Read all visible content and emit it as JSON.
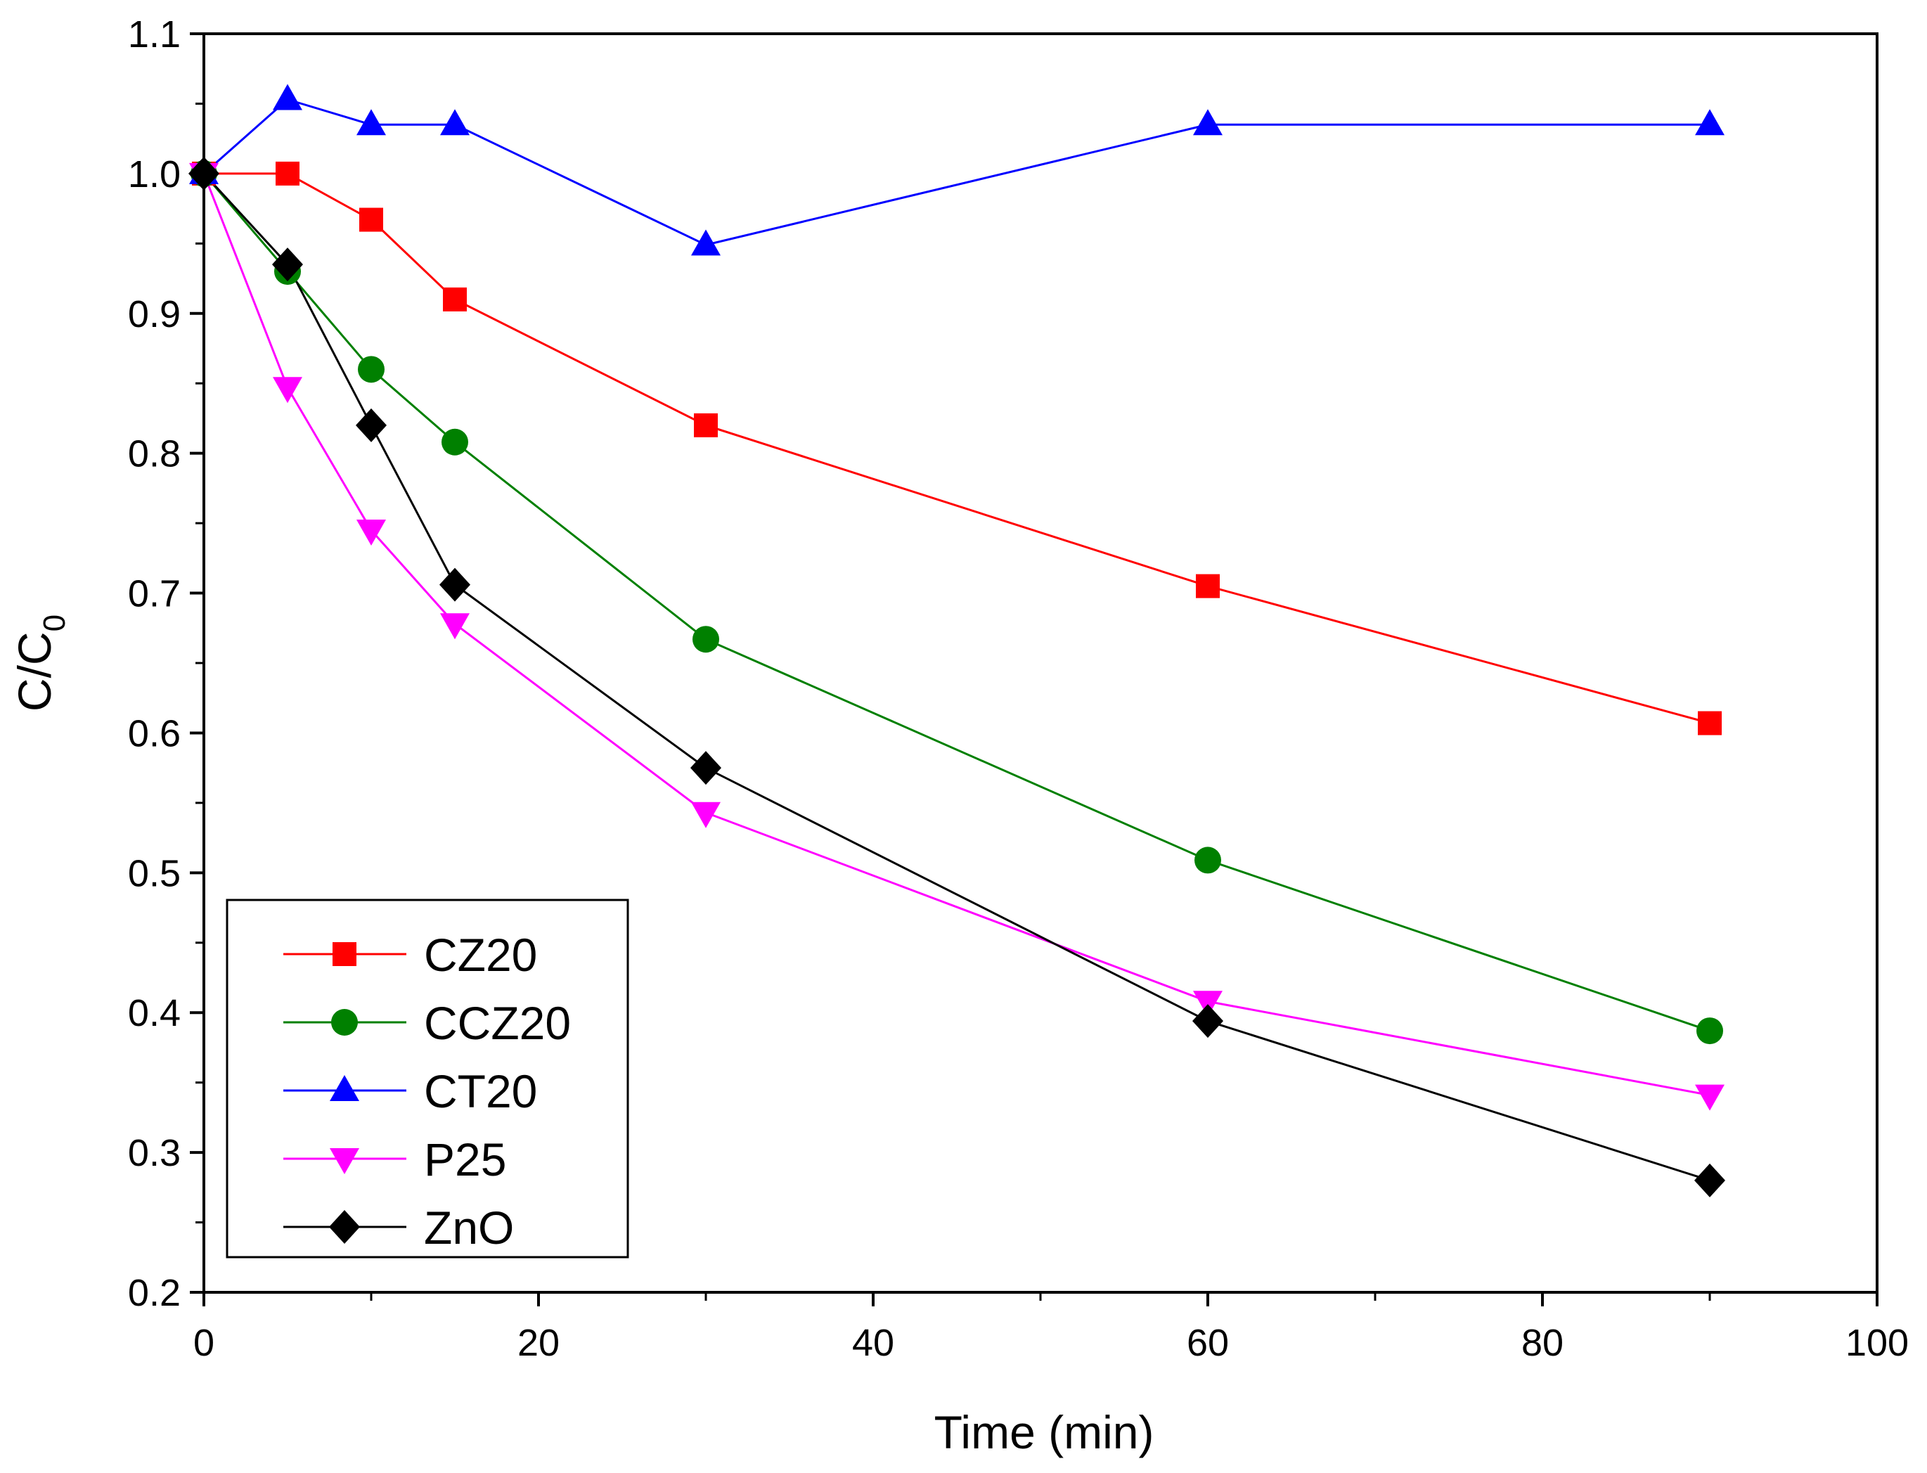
{
  "chart_data": {
    "type": "line",
    "title": "",
    "xlabel": "Time (min)",
    "ylabel_main": "C/C",
    "ylabel_sub": "0",
    "xlim": [
      0,
      100
    ],
    "ylim": [
      0.2,
      1.1
    ],
    "x_major_ticks": [
      0,
      20,
      40,
      60,
      80,
      100
    ],
    "x_minor_ticks": [
      10,
      30,
      50,
      70,
      90
    ],
    "x_tick_labels": [
      "0",
      "20",
      "40",
      "60",
      "80",
      "100"
    ],
    "y_major_ticks": [
      0.2,
      0.3,
      0.4,
      0.5,
      0.6,
      0.7,
      0.8,
      0.9,
      1.0,
      1.1
    ],
    "y_minor_ticks": [
      0.25,
      0.35,
      0.45,
      0.55,
      0.65,
      0.75,
      0.85,
      0.95,
      1.05
    ],
    "y_tick_labels": [
      "0.2",
      "0.3",
      "0.4",
      "0.5",
      "0.6",
      "0.7",
      "0.8",
      "0.9",
      "1.0",
      "1.1"
    ],
    "grid": false,
    "legend_position": "bottom-left",
    "x": [
      0,
      5,
      10,
      15,
      30,
      60,
      90
    ],
    "series": [
      {
        "name": "CZ20",
        "color": "#ff0000",
        "marker": "square",
        "values": [
          1.0,
          1.0,
          0.967,
          0.91,
          0.82,
          0.705,
          0.607
        ]
      },
      {
        "name": "CCZ20",
        "color": "#008000",
        "marker": "circle",
        "values": [
          1.0,
          0.93,
          0.86,
          0.808,
          0.667,
          0.509,
          0.387
        ]
      },
      {
        "name": "CT20",
        "color": "#0000ff",
        "marker": "triangle-up",
        "values": [
          1.0,
          1.053,
          1.035,
          1.035,
          0.949,
          1.035,
          1.035
        ]
      },
      {
        "name": "P25",
        "color": "#ff00ff",
        "marker": "triangle-down",
        "values": [
          1.0,
          0.847,
          0.745,
          0.678,
          0.543,
          0.408,
          0.341
        ]
      },
      {
        "name": "ZnO",
        "color": "#000000",
        "marker": "diamond",
        "values": [
          1.0,
          0.935,
          0.82,
          0.706,
          0.575,
          0.394,
          0.28
        ]
      }
    ]
  }
}
